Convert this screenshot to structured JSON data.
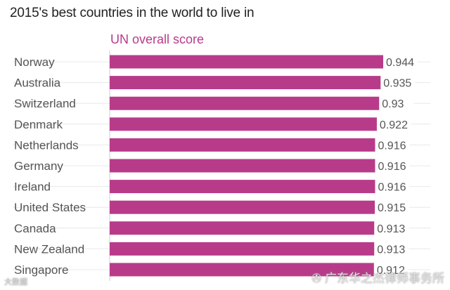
{
  "chart_data": {
    "type": "bar",
    "orientation": "horizontal",
    "title": "2015's best countries in the world to live in",
    "series": [
      {
        "name": "UN overall score",
        "values": [
          0.944,
          0.935,
          0.93,
          0.922,
          0.916,
          0.916,
          0.916,
          0.915,
          0.913,
          0.913,
          0.912
        ]
      }
    ],
    "categories": [
      "Norway",
      "Australia",
      "Switzerland",
      "Denmark",
      "Netherlands",
      "Germany",
      "Ireland",
      "United States",
      "Canada",
      "New Zealand",
      "Singapore"
    ],
    "value_labels": [
      "0.944",
      "0.935",
      "0.93",
      "0.922",
      "0.916",
      "0.916",
      "0.916",
      "0.915",
      "0.913",
      "0.913",
      "0.912"
    ],
    "xlim": [
      0,
      0.944
    ],
    "grid": false,
    "colors": {
      "bar": "#b83b8a",
      "text": "#555555",
      "title": "#222222",
      "guide": "#e8e8e8"
    }
  },
  "watermark": {
    "brand": "广东华之杰律师事务所",
    "small": "大数据"
  }
}
